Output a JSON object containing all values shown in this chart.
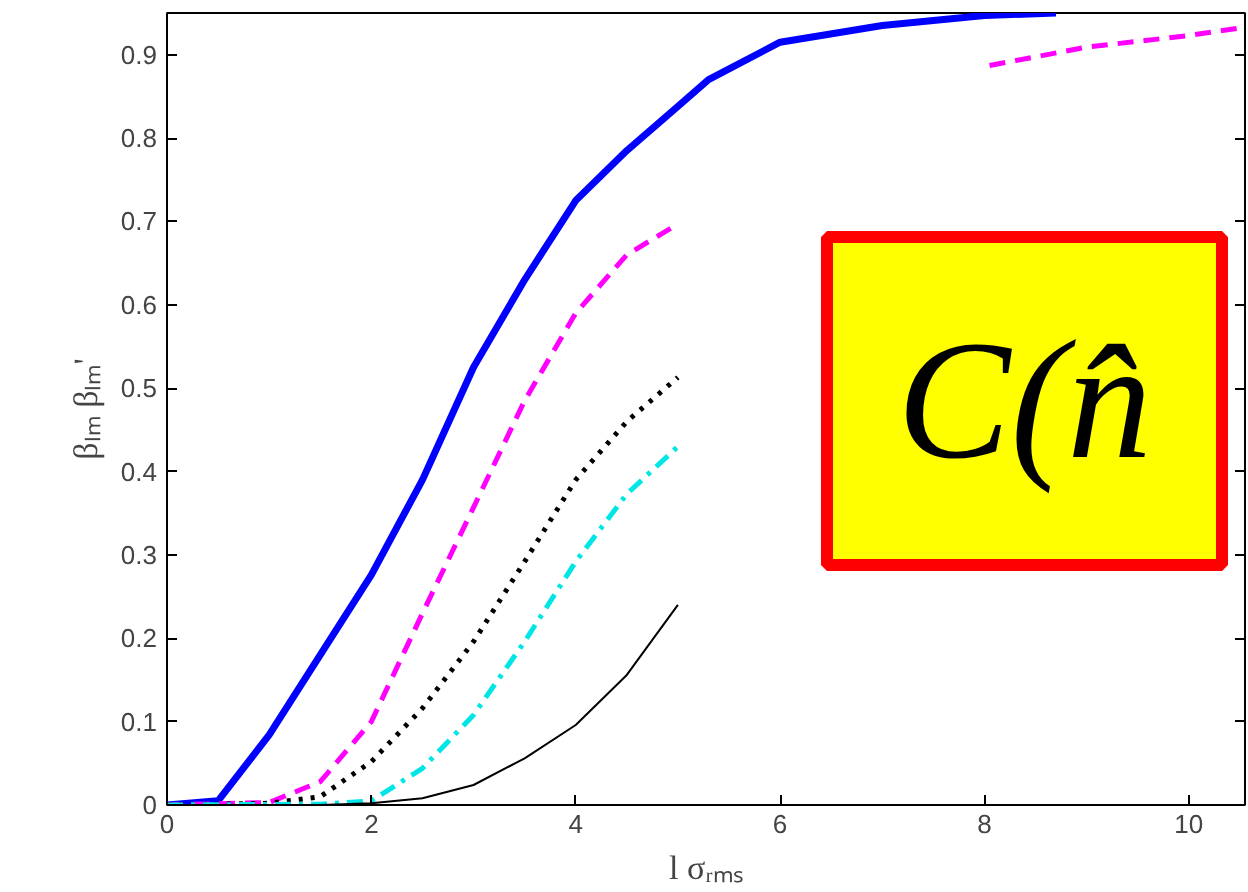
{
  "chart_data": {
    "type": "line",
    "xlabel": "l σᵣₘₛ",
    "ylabel": "βₗₘ βₗₘ'",
    "xlim": [
      0,
      10.55
    ],
    "ylim": [
      0,
      0.95
    ],
    "xticks": [
      0,
      2,
      4,
      6,
      8,
      10
    ],
    "yticks": [
      0,
      0.1,
      0.2,
      0.3,
      0.4,
      0.5,
      0.6,
      0.7,
      0.8,
      0.9
    ],
    "grid": false,
    "marker": "none",
    "annotations": [
      "C(n̂"
    ],
    "series": [
      {
        "color": "#0000ff",
        "line_style": "solid",
        "x": [
          0,
          0.5,
          1,
          1.5,
          2,
          2.5,
          3,
          3.5,
          4,
          4.5,
          5,
          5.3,
          6,
          7,
          8,
          8.7
        ],
        "values": [
          0,
          0.005,
          0.084,
          0.18,
          0.276,
          0.39,
          0.525,
          0.63,
          0.725,
          0.785,
          0.838,
          0.87,
          0.915,
          0.935,
          0.947,
          0.95
        ]
      },
      {
        "color": "#ff00ff",
        "line_style": "dashed",
        "x": [
          0,
          1,
          1.5,
          2,
          2.5,
          3,
          3.5,
          4,
          4.5,
          5,
          6.5,
          8.05,
          9,
          10,
          10.55
        ],
        "values": [
          0,
          0.003,
          0.028,
          0.1,
          0.23,
          0.357,
          0.485,
          0.59,
          0.66,
          0.697,
          null,
          0.887,
          0.909,
          0.923,
          0.933
        ]
      },
      {
        "color": "#000000",
        "line_style": "dotted",
        "x": [
          0,
          1,
          1.5,
          2,
          2.5,
          3,
          3.5,
          4,
          4.5,
          5
        ],
        "values": [
          0,
          0.002,
          0.01,
          0.052,
          0.116,
          0.196,
          0.292,
          0.39,
          0.46,
          0.513
        ]
      },
      {
        "color": "#00e5e5",
        "line_style": "dashdot",
        "x": [
          0,
          1.5,
          2,
          2.5,
          3,
          3.5,
          4,
          4.5,
          5
        ],
        "values": [
          0,
          0.001,
          0.005,
          0.044,
          0.108,
          0.196,
          0.292,
          0.373,
          0.43
        ]
      },
      {
        "color": "#000000",
        "line_style": "solid",
        "x": [
          0,
          1.5,
          2,
          2.5,
          3,
          3.5,
          4,
          4.5,
          5
        ],
        "values": [
          0,
          0.0,
          0.002,
          0.008,
          0.024,
          0.056,
          0.096,
          0.156,
          0.24
        ]
      }
    ]
  }
}
